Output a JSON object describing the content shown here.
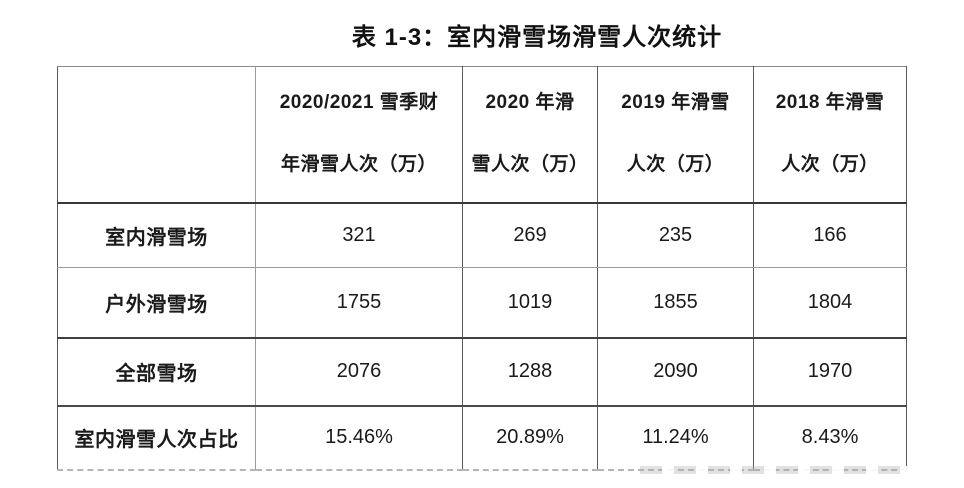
{
  "page": {
    "title": "表 1-3：室内滑雪场滑雪人次统计"
  },
  "table": {
    "columns": [
      {
        "line1": "",
        "line2": ""
      },
      {
        "line1": "2020/2021 雪季财",
        "line2": "年滑雪人次（万）"
      },
      {
        "line1": "2020 年滑",
        "line2": "雪人次（万）"
      },
      {
        "line1": "2019 年滑雪",
        "line2": "人次（万）"
      },
      {
        "line1": "2018 年滑雪",
        "line2": "人次（万）"
      }
    ],
    "rows": [
      {
        "label": "室内滑雪场",
        "values": [
          "321",
          "269",
          "235",
          "166"
        ]
      },
      {
        "label": "户外滑雪场",
        "values": [
          "1755",
          "1019",
          "1855",
          "1804"
        ]
      },
      {
        "label": "全部雪场",
        "values": [
          "2076",
          "1288",
          "2090",
          "1970"
        ]
      },
      {
        "label": "室内滑雪人次占比",
        "values": [
          "15.46%",
          "20.89%",
          "11.24%",
          "8.43%"
        ]
      }
    ]
  },
  "colors": {
    "background": "#ffffff",
    "text": "#1a1a1a",
    "border_dark": "#383838",
    "border_light": "#9a9a9a"
  },
  "chart_data": {
    "type": "table",
    "title": "表 1-3：室内滑雪场滑雪人次统计",
    "columns": [
      "",
      "2020/2021 雪季财年滑雪人次（万）",
      "2020 年滑雪人次（万）",
      "2019 年滑雪人次（万）",
      "2018 年滑雪人次（万）"
    ],
    "rows": [
      [
        "室内滑雪场",
        "321",
        "269",
        "235",
        "166"
      ],
      [
        "户外滑雪场",
        "1755",
        "1019",
        "1855",
        "1804"
      ],
      [
        "全部雪场",
        "2076",
        "1288",
        "2090",
        "1970"
      ],
      [
        "室内滑雪人次占比",
        "15.46%",
        "20.89%",
        "11.24%",
        "8.43%"
      ]
    ]
  }
}
